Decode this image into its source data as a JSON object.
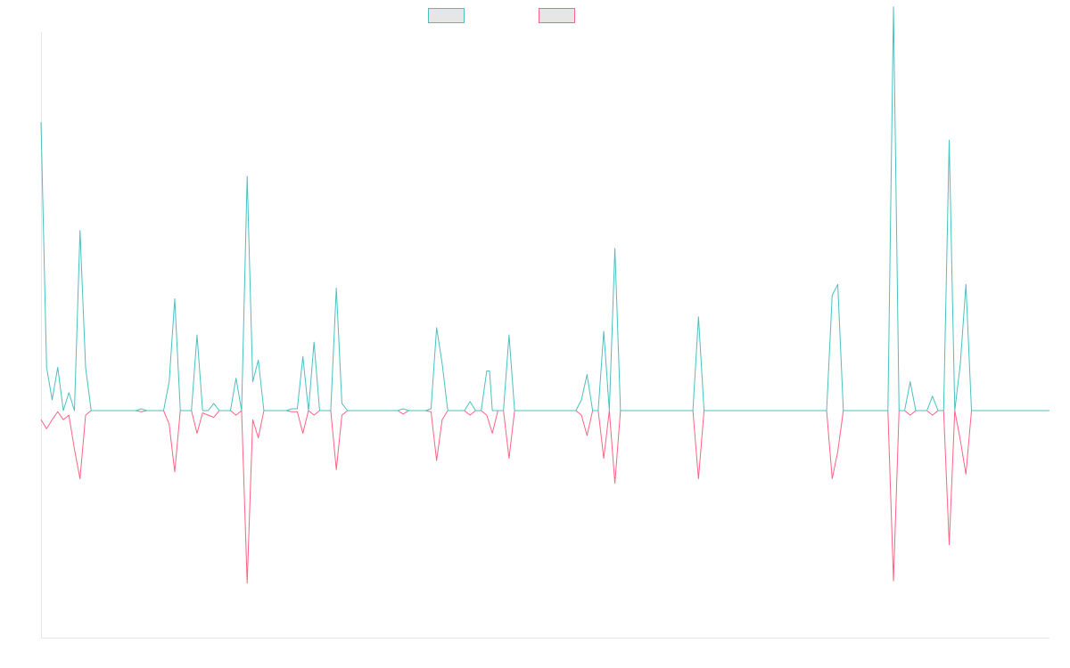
{
  "chart_data": {
    "type": "line",
    "title": "",
    "xlabel": "",
    "ylabel": "",
    "grid": false,
    "legend_position": "top-center",
    "x_count": 182,
    "ylim": [
      -100,
      105
    ],
    "series": [
      {
        "color": "#4bc0c0",
        "legend_fill": "#e6e6e6",
        "values": [
          80,
          12,
          3,
          12,
          0,
          5,
          0,
          50,
          12,
          0,
          0,
          0,
          0,
          0,
          0,
          0,
          0,
          0,
          0,
          0,
          0,
          0,
          0,
          0,
          0,
          0,
          0,
          0,
          0,
          0,
          0,
          0,
          0,
          0,
          0,
          0,
          0,
          0,
          0,
          0,
          0,
          0,
          0,
          0,
          0,
          0,
          0,
          0,
          0,
          0,
          0,
          0,
          0,
          0,
          0,
          0,
          0,
          0,
          0,
          0,
          0,
          0,
          0,
          0,
          0,
          0,
          0,
          0,
          0,
          0,
          0,
          0,
          0,
          0,
          0,
          0,
          0,
          0,
          0,
          0,
          0,
          0,
          0,
          0,
          0,
          0,
          0,
          0,
          0,
          0,
          0,
          0,
          0,
          0,
          0,
          0,
          0,
          0,
          0,
          0,
          0,
          0,
          0,
          0,
          0,
          0,
          0,
          0,
          0,
          0,
          0,
          0,
          0,
          0,
          0,
          0,
          0,
          0,
          0,
          0,
          0,
          0,
          0,
          0,
          0,
          0,
          0,
          0,
          0,
          0,
          0,
          0,
          0,
          0,
          0,
          0,
          0,
          0,
          0,
          0,
          0,
          0,
          0,
          0,
          0,
          0,
          0,
          0,
          0,
          0,
          0,
          0,
          0,
          0,
          0,
          0,
          0,
          0,
          0,
          0,
          0,
          0,
          0,
          0,
          0,
          0,
          0,
          0,
          0,
          0,
          0,
          0,
          0,
          0,
          0,
          0,
          0,
          0,
          0,
          0,
          0,
          0
        ],
        "spikes": [
          [
            0,
            80
          ],
          [
            1,
            12
          ],
          [
            2,
            3
          ],
          [
            3,
            12
          ],
          [
            5,
            5
          ],
          [
            7,
            50
          ],
          [
            8,
            12
          ],
          [
            18,
            0.5
          ],
          [
            23,
            8
          ],
          [
            24,
            31
          ],
          [
            28,
            21
          ],
          [
            31,
            2
          ],
          [
            35,
            9
          ],
          [
            37,
            65
          ],
          [
            38,
            8
          ],
          [
            39,
            14
          ],
          [
            45,
            0.5
          ],
          [
            46,
            0.5
          ],
          [
            47,
            15
          ],
          [
            49,
            19
          ],
          [
            53,
            34
          ],
          [
            54,
            2
          ],
          [
            65,
            0.5
          ],
          [
            70,
            0.5
          ],
          [
            71,
            23
          ],
          [
            72,
            13
          ],
          [
            77,
            2.5
          ],
          [
            80,
            11
          ],
          [
            80.5,
            11
          ],
          [
            81,
            0
          ],
          [
            84,
            21
          ],
          [
            97,
            3
          ],
          [
            98,
            10
          ],
          [
            101,
            22
          ],
          [
            103,
            45
          ],
          [
            118,
            26
          ],
          [
            142,
            32
          ],
          [
            143,
            35
          ],
          [
            153,
            112
          ],
          [
            156,
            8
          ],
          [
            160,
            4
          ],
          [
            163,
            75
          ],
          [
            165,
            13
          ],
          [
            166,
            35
          ]
        ]
      },
      {
        "color": "#ff6384",
        "legend_fill": "#e6e6e6",
        "values": [],
        "spikes": [
          [
            0,
            -4
          ],
          [
            1,
            -8
          ],
          [
            2,
            -4
          ],
          [
            3,
            -0.5
          ],
          [
            4,
            -4
          ],
          [
            5,
            -2
          ],
          [
            6,
            -17
          ],
          [
            7,
            -30
          ],
          [
            8,
            -2
          ],
          [
            18,
            -0.5
          ],
          [
            23,
            -6
          ],
          [
            24,
            -27
          ],
          [
            28,
            -10
          ],
          [
            29,
            -1
          ],
          [
            30,
            -2
          ],
          [
            31,
            -3
          ],
          [
            35,
            -2
          ],
          [
            37,
            -76
          ],
          [
            38,
            -4
          ],
          [
            39,
            -12
          ],
          [
            45,
            -0.5
          ],
          [
            46,
            -0.5
          ],
          [
            47,
            -10
          ],
          [
            49,
            -2
          ],
          [
            53,
            -26
          ],
          [
            54,
            -2
          ],
          [
            65,
            -1.5
          ],
          [
            70,
            -0.5
          ],
          [
            71,
            -22
          ],
          [
            72,
            -4
          ],
          [
            77,
            -2
          ],
          [
            80,
            -2
          ],
          [
            81,
            -10
          ],
          [
            84,
            -21
          ],
          [
            97,
            -2
          ],
          [
            98,
            -11
          ],
          [
            101,
            -21
          ],
          [
            103,
            -32
          ],
          [
            118,
            -30
          ],
          [
            142,
            -30
          ],
          [
            143,
            -18
          ],
          [
            153,
            -75
          ],
          [
            156,
            -2
          ],
          [
            160,
            -2
          ],
          [
            163,
            -59
          ],
          [
            165,
            -13
          ],
          [
            166,
            -28
          ]
        ]
      }
    ]
  }
}
